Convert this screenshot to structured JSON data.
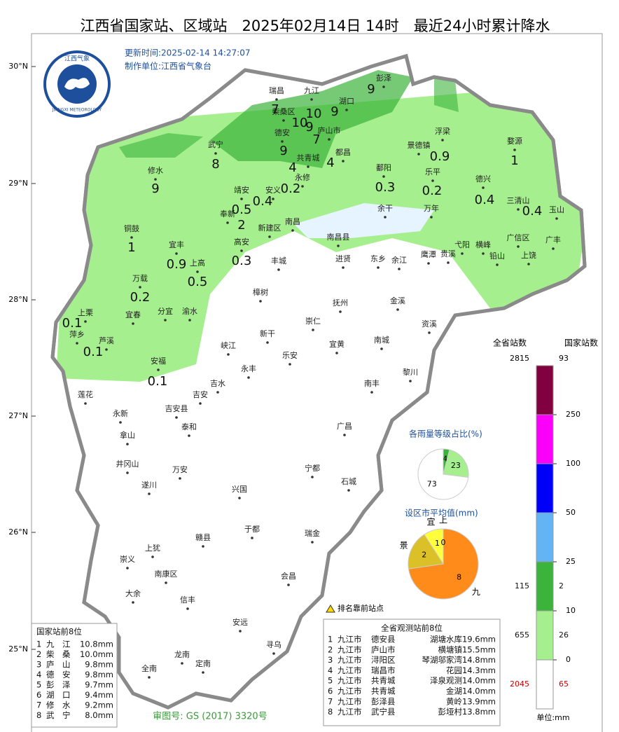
{
  "title": "江西省国家站、区域站　2025年02月14日 14时　最近24小时累计降水",
  "update_time": "更新时间:2025-02-14 14:27:07",
  "producer": "制作单位:江西省气象台",
  "logo": {
    "top": "江西气象",
    "bottom": "JIANGXI METEOROLOGY"
  },
  "latitudes": [
    "30°N",
    "29°N",
    "28°N",
    "27°N",
    "26°N",
    "25°N"
  ],
  "cities": [
    "彭泽",
    "瑞昌",
    "九江",
    "湖口",
    "柴桑区",
    "庐山市",
    "德安",
    "武宁",
    "共青城",
    "都昌",
    "修水",
    "永修",
    "靖安",
    "安义",
    "鄱阳",
    "景德镇",
    "浮梁",
    "婺源",
    "乐平",
    "德兴",
    "万年",
    "余干",
    "三清山",
    "玉山",
    "奉新",
    "新建区",
    "南昌",
    "南昌县",
    "铜鼓",
    "宜丰",
    "高安",
    "上高",
    "丰城",
    "进贤",
    "东乡",
    "余江",
    "鹰潭",
    "贵溪",
    "弋阳",
    "横峰",
    "广信区",
    "广丰",
    "上饶",
    "铅山",
    "万载",
    "樟树",
    "金溪",
    "抚州",
    "上栗",
    "宜春",
    "分宜",
    "渝水",
    "崇仁",
    "资溪",
    "新干",
    "萍乡",
    "芦溪",
    "宜黄",
    "南城",
    "峡江",
    "乐安",
    "永丰",
    "安福",
    "黎川",
    "南丰",
    "吉水",
    "吉安",
    "莲花",
    "永新",
    "吉安县",
    "泰和",
    "广昌",
    "拿山",
    "井冈山",
    "宁都",
    "遂川",
    "万安",
    "兴国",
    "石城",
    "于都",
    "瑞金",
    "赣县",
    "上犹",
    "崇义",
    "南康区",
    "会昌",
    "大余",
    "信丰",
    "安远",
    "寻乌",
    "龙南",
    "定南",
    "全南"
  ],
  "rainfall": [
    9,
    7,
    10,
    9,
    10,
    9,
    7,
    9,
    4,
    4,
    8,
    9,
    0.2,
    0.4,
    0.5,
    2,
    0.3,
    0.2,
    0.9,
    1,
    0.4,
    0.4,
    1,
    0.9,
    0.5,
    0.3,
    0.2,
    0.1,
    0.1,
    0.1
  ],
  "legend": {
    "header_provincial": "全省站数",
    "header_national": "国家站数",
    "total_provincial": 2815,
    "total_national": 93,
    "thresholds": [
      0,
      10,
      25,
      50,
      100,
      250
    ],
    "bands": [
      {
        "color": "#ffffff",
        "provincial": 2045,
        "national": 65
      },
      {
        "color": "#a6ef8e",
        "provincial": 655,
        "national": 26
      },
      {
        "color": "#3cb43c",
        "provincial": 115,
        "national": 2
      },
      {
        "color": "#62b4f4"
      },
      {
        "color": "#0000fa"
      },
      {
        "color": "#fa00fa"
      },
      {
        "color": "#800040"
      }
    ],
    "unit": "单位:mm"
  },
  "pie_levels": {
    "title": "各雨量等级占比(%)",
    "slices": [
      {
        "value": 4,
        "color": "#3cb43c"
      },
      {
        "value": 23,
        "color": "#a6ef8e"
      },
      {
        "value": 73,
        "color": "#ffffff"
      }
    ]
  },
  "pie_cities": {
    "title": "设区市平均值(mm)",
    "slices": [
      {
        "label": "九",
        "value": 8,
        "color": "#ff8c1a"
      },
      {
        "label": "景",
        "value": 2,
        "color": "#dcc028"
      },
      {
        "label": "宜",
        "value": 1,
        "color": "#ffff3c"
      },
      {
        "label": "上",
        "value": 0,
        "color": "#3cb43c"
      }
    ]
  },
  "marker_note": "排名靠前站点",
  "national_table": {
    "title": "国家站前8位",
    "rows": [
      [
        1,
        "九　江",
        "10.8mm"
      ],
      [
        2,
        "柴　桑",
        "10.0mm"
      ],
      [
        3,
        "庐　山",
        "9.8mm"
      ],
      [
        4,
        "德　安",
        "9.8mm"
      ],
      [
        5,
        "彭　泽",
        "9.7mm"
      ],
      [
        6,
        "湖　口",
        "9.4mm"
      ],
      [
        7,
        "修　水",
        "9.2mm"
      ],
      [
        8,
        "武　宁",
        "8.0mm"
      ]
    ]
  },
  "provincial_table": {
    "title": "全省观测站前8位",
    "rows": [
      [
        1,
        "九江市",
        "德安县",
        "湖塘水库",
        "19.6mm"
      ],
      [
        2,
        "九江市",
        "庐山市",
        "横塘镇",
        "15.5mm"
      ],
      [
        3,
        "九江市",
        "浔阳区",
        "琴湖邬家湾",
        "14.8mm"
      ],
      [
        4,
        "九江市",
        "瑞昌市",
        "花园",
        "14.3mm"
      ],
      [
        5,
        "九江市",
        "共青城",
        "泽泉观测",
        "14.0mm"
      ],
      [
        6,
        "九江市",
        "共青城",
        "金湖",
        "14.0mm"
      ],
      [
        7,
        "九江市",
        "彭泽县",
        "黄岭",
        "13.9mm"
      ],
      [
        8,
        "九江市",
        "武宁县",
        "彭垭村",
        "13.8mm"
      ]
    ]
  },
  "map_no": "审图号: GS (2017) 3320号"
}
